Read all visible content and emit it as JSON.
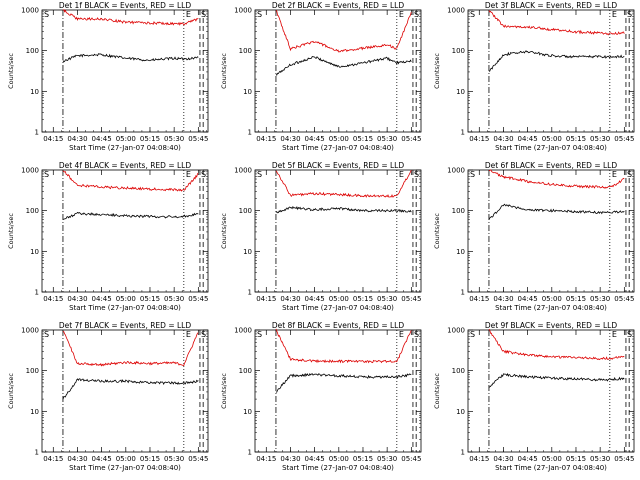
{
  "figure": {
    "type": "line",
    "ylabel": "Counts/sec",
    "xlabel": "Start Time (27-Jan-07 04:08:40)",
    "x_ticks": [
      "04:15",
      "04:30",
      "04:45",
      "05:00",
      "05:15",
      "05:30",
      "05:45"
    ],
    "y_ticks": [
      "1",
      "10",
      "100",
      "1000"
    ],
    "y_scale": "log",
    "marker_labels": {
      "start": "S",
      "end": "E"
    },
    "colors": {
      "events": "#000000",
      "lld": "#dd0000"
    }
  },
  "chart_data": [
    {
      "type": "line",
      "title": "Det 1f BLACK = Events, RED = LLD",
      "xlabel": "Start Time (27-Jan-07 04:08:40)",
      "ylabel": "Counts/sec",
      "yscale": "log",
      "ylim": [
        1,
        1000
      ],
      "x": [
        "04:21",
        "04:30",
        "04:45",
        "05:00",
        "05:15",
        "05:30",
        "05:36",
        "05:45"
      ],
      "series": [
        {
          "name": "BLACK = Events",
          "color": "#000000",
          "values": [
            55,
            75,
            80,
            65,
            58,
            65,
            62,
            68
          ]
        },
        {
          "name": "RED = LLD",
          "color": "#dd0000",
          "values": [
            1000,
            600,
            600,
            500,
            480,
            460,
            460,
            600
          ]
        }
      ]
    },
    {
      "type": "line",
      "title": "Det 2f BLACK = Events, RED = LLD",
      "xlabel": "Start Time (27-Jan-07 04:08:40)",
      "ylabel": "Counts/sec",
      "yscale": "log",
      "ylim": [
        1,
        1000
      ],
      "x": [
        "04:21",
        "04:30",
        "04:45",
        "05:00",
        "05:15",
        "05:30",
        "05:36",
        "05:45"
      ],
      "series": [
        {
          "name": "BLACK = Events",
          "color": "#000000",
          "values": [
            25,
            45,
            70,
            40,
            50,
            65,
            50,
            55
          ]
        },
        {
          "name": "RED = LLD",
          "color": "#dd0000",
          "values": [
            1000,
            110,
            170,
            95,
            115,
            140,
            110,
            900
          ]
        }
      ]
    },
    {
      "type": "line",
      "title": "Det 3f BLACK = Events, RED = LLD",
      "xlabel": "Start Time (27-Jan-07 04:08:40)",
      "ylabel": "Counts/sec",
      "yscale": "log",
      "ylim": [
        1,
        1000
      ],
      "x": [
        "04:21",
        "04:30",
        "04:45",
        "05:00",
        "05:15",
        "05:30",
        "05:36",
        "05:45"
      ],
      "series": [
        {
          "name": "BLACK = Events",
          "color": "#000000",
          "values": [
            30,
            80,
            95,
            75,
            70,
            72,
            70,
            72
          ]
        },
        {
          "name": "RED = LLD",
          "color": "#dd0000",
          "values": [
            1000,
            400,
            380,
            330,
            290,
            270,
            260,
            270
          ]
        }
      ]
    },
    {
      "type": "line",
      "title": "Det 4f BLACK = Events, RED = LLD",
      "xlabel": "Start Time (27-Jan-07 04:08:40)",
      "ylabel": "Counts/sec",
      "yscale": "log",
      "ylim": [
        1,
        1000
      ],
      "x": [
        "04:21",
        "04:30",
        "04:45",
        "05:00",
        "05:15",
        "05:30",
        "05:36",
        "05:45"
      ],
      "series": [
        {
          "name": "BLACK = Events",
          "color": "#000000",
          "values": [
            60,
            85,
            80,
            75,
            72,
            70,
            72,
            85
          ]
        },
        {
          "name": "RED = LLD",
          "color": "#dd0000",
          "values": [
            1000,
            420,
            380,
            360,
            340,
            330,
            320,
            800
          ]
        }
      ]
    },
    {
      "type": "line",
      "title": "Det 5f BLACK = Events, RED = LLD",
      "xlabel": "Start Time (27-Jan-07 04:08:40)",
      "ylabel": "Counts/sec",
      "yscale": "log",
      "ylim": [
        1,
        1000
      ],
      "x": [
        "04:21",
        "04:30",
        "04:45",
        "05:00",
        "05:15",
        "05:30",
        "05:36",
        "05:45"
      ],
      "series": [
        {
          "name": "BLACK = Events",
          "color": "#000000",
          "values": [
            90,
            120,
            105,
            115,
            100,
            100,
            100,
            95
          ]
        },
        {
          "name": "RED = LLD",
          "color": "#dd0000",
          "values": [
            1000,
            240,
            260,
            250,
            230,
            230,
            230,
            1000
          ]
        }
      ]
    },
    {
      "type": "line",
      "title": "Det 6f BLACK = Events, RED = LLD",
      "xlabel": "Start Time (27-Jan-07 04:08:40)",
      "ylabel": "Counts/sec",
      "yscale": "log",
      "ylim": [
        1,
        1000
      ],
      "x": [
        "04:21",
        "04:30",
        "04:45",
        "05:00",
        "05:15",
        "05:30",
        "05:36",
        "05:45"
      ],
      "series": [
        {
          "name": "BLACK = Events",
          "color": "#000000",
          "values": [
            60,
            140,
            105,
            100,
            95,
            90,
            90,
            95
          ]
        },
        {
          "name": "RED = LLD",
          "color": "#dd0000",
          "values": [
            1000,
            680,
            520,
            440,
            400,
            380,
            370,
            600
          ]
        }
      ]
    },
    {
      "type": "line",
      "title": "Det 7f BLACK = Events, RED = LLD",
      "xlabel": "Start Time (27-Jan-07 04:08:40)",
      "ylabel": "Counts/sec",
      "yscale": "log",
      "ylim": [
        1,
        1000
      ],
      "x": [
        "04:21",
        "04:30",
        "04:45",
        "05:00",
        "05:15",
        "05:30",
        "05:36",
        "05:45"
      ],
      "series": [
        {
          "name": "BLACK = Events",
          "color": "#000000",
          "values": [
            20,
            60,
            55,
            55,
            50,
            50,
            50,
            55
          ]
        },
        {
          "name": "RED = LLD",
          "color": "#dd0000",
          "values": [
            1000,
            150,
            140,
            160,
            150,
            155,
            140,
            900
          ]
        }
      ]
    },
    {
      "type": "line",
      "title": "Det 8f BLACK = Events, RED = LLD",
      "xlabel": "Start Time (27-Jan-07 04:08:40)",
      "ylabel": "Counts/sec",
      "yscale": "log",
      "ylim": [
        1,
        1000
      ],
      "x": [
        "04:21",
        "04:30",
        "04:45",
        "05:00",
        "05:15",
        "05:30",
        "05:36",
        "05:45"
      ],
      "series": [
        {
          "name": "BLACK = Events",
          "color": "#000000",
          "values": [
            30,
            75,
            80,
            75,
            70,
            70,
            70,
            80
          ]
        },
        {
          "name": "RED = LLD",
          "color": "#dd0000",
          "values": [
            1000,
            190,
            170,
            170,
            165,
            170,
            165,
            1000
          ]
        }
      ]
    },
    {
      "type": "line",
      "title": "Det 9f BLACK = Events, RED = LLD",
      "xlabel": "Start Time (27-Jan-07 04:08:40)",
      "ylabel": "Counts/sec",
      "yscale": "log",
      "ylim": [
        1,
        1000
      ],
      "x": [
        "04:21",
        "04:30",
        "04:45",
        "05:00",
        "05:15",
        "05:30",
        "05:36",
        "05:45"
      ],
      "series": [
        {
          "name": "BLACK = Events",
          "color": "#000000",
          "values": [
            40,
            80,
            70,
            65,
            62,
            60,
            60,
            65
          ]
        },
        {
          "name": "RED = LLD",
          "color": "#dd0000",
          "values": [
            1000,
            300,
            240,
            220,
            210,
            200,
            200,
            220
          ]
        }
      ]
    }
  ]
}
